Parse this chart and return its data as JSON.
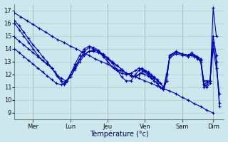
{
  "title": "Température (°c)",
  "x_labels": [
    "Mer",
    "Lun",
    "Jeu",
    "Ven",
    "Sam",
    "Dim"
  ],
  "ylim": [
    8.5,
    17.5
  ],
  "yticks": [
    9,
    10,
    11,
    12,
    13,
    14,
    15,
    16,
    17
  ],
  "background_color": "#cce8ec",
  "line_color": "#0000bb",
  "grid_color": "#aacccc",
  "series": [
    {
      "x": [
        0,
        8,
        16,
        24,
        32,
        40,
        48,
        56,
        64,
        72,
        80,
        88,
        96,
        104,
        112,
        120,
        128,
        136,
        144,
        152,
        160,
        168,
        176,
        184,
        192,
        200,
        208,
        216,
        224,
        232,
        240,
        248,
        256
      ],
      "y": [
        16.8,
        16.5,
        16.2,
        15.9,
        15.6,
        15.3,
        15.0,
        14.7,
        14.5,
        14.2,
        14.0,
        13.7,
        13.5,
        13.2,
        13.0,
        12.8,
        12.5,
        12.3,
        12.1,
        11.9,
        11.7,
        11.5,
        11.3,
        11.1,
        10.9,
        10.7,
        10.5,
        10.2,
        10.0,
        9.7,
        9.5,
        9.2,
        9.0
      ]
    },
    {
      "x": [
        0,
        6,
        12,
        18,
        24,
        30,
        36,
        42,
        48,
        52,
        56,
        60,
        64,
        68,
        72,
        78,
        84,
        90,
        96,
        102,
        108,
        114,
        120,
        126,
        132,
        138,
        144,
        150,
        156,
        160,
        164,
        168,
        172,
        176,
        180,
        184,
        188,
        192,
        196,
        200,
        208,
        216,
        224,
        228,
        232,
        236,
        240,
        244,
        248,
        252,
        256,
        260
      ],
      "y": [
        16.2,
        15.8,
        15.3,
        14.8,
        14.3,
        13.9,
        13.4,
        13.0,
        12.5,
        12.2,
        11.8,
        11.5,
        11.2,
        11.5,
        12.0,
        12.8,
        13.5,
        14.0,
        14.2,
        14.1,
        13.9,
        13.5,
        13.2,
        12.9,
        12.4,
        11.8,
        11.5,
        11.5,
        12.0,
        12.3,
        12.5,
        12.3,
        12.2,
        12.0,
        11.8,
        11.6,
        11.3,
        11.0,
        11.5,
        13.5,
        13.8,
        13.6,
        13.5,
        13.7,
        13.5,
        13.3,
        13.0,
        11.2,
        11.0,
        11.3,
        17.2,
        15.0
      ]
    },
    {
      "x": [
        0,
        6,
        12,
        18,
        24,
        30,
        36,
        42,
        48,
        54,
        60,
        66,
        72,
        78,
        84,
        90,
        96,
        102,
        108,
        114,
        120,
        126,
        132,
        138,
        144,
        150,
        156,
        160,
        164,
        168,
        172,
        176,
        180,
        184,
        188,
        192,
        196,
        200,
        208,
        216,
        224,
        228,
        232,
        236,
        240,
        244,
        248,
        252,
        256,
        260,
        264
      ],
      "y": [
        16.0,
        15.5,
        15.0,
        14.5,
        14.0,
        13.5,
        13.1,
        12.8,
        12.5,
        12.0,
        11.5,
        11.4,
        11.8,
        12.5,
        13.2,
        13.8,
        14.1,
        14.0,
        13.8,
        13.4,
        13.0,
        12.6,
        12.3,
        12.1,
        12.0,
        12.1,
        12.3,
        12.5,
        12.4,
        12.2,
        12.0,
        11.8,
        11.5,
        11.3,
        11.0,
        10.8,
        11.5,
        13.5,
        13.7,
        13.6,
        13.5,
        13.5,
        13.4,
        13.2,
        13.0,
        11.0,
        11.2,
        11.5,
        15.0,
        13.5,
        9.5
      ]
    },
    {
      "x": [
        0,
        6,
        12,
        18,
        24,
        30,
        36,
        42,
        48,
        54,
        60,
        66,
        72,
        78,
        84,
        90,
        96,
        102,
        108,
        114,
        120,
        126,
        132,
        138,
        144,
        150,
        156,
        160,
        164,
        168,
        172,
        176,
        180,
        184,
        188,
        192,
        196,
        200,
        208,
        216,
        224,
        228,
        232,
        236,
        240,
        244,
        248,
        252,
        256,
        260,
        264
      ],
      "y": [
        14.9,
        14.6,
        14.3,
        14.0,
        13.7,
        13.4,
        13.1,
        12.8,
        12.5,
        12.0,
        11.7,
        11.5,
        11.8,
        12.4,
        13.0,
        13.5,
        13.8,
        13.9,
        13.8,
        13.6,
        13.3,
        13.0,
        12.7,
        12.4,
        12.1,
        11.9,
        11.8,
        12.0,
        12.2,
        12.3,
        12.1,
        11.9,
        11.7,
        11.5,
        11.3,
        11.0,
        12.0,
        13.4,
        13.7,
        13.6,
        13.5,
        13.6,
        13.5,
        13.4,
        13.2,
        11.2,
        11.4,
        11.5,
        14.5,
        13.0,
        9.8
      ]
    },
    {
      "x": [
        0,
        6,
        12,
        18,
        24,
        30,
        36,
        42,
        48,
        54,
        60,
        66,
        72,
        78,
        84,
        90,
        96,
        102,
        108,
        114,
        120,
        126,
        132,
        138,
        144,
        150,
        156,
        160,
        164,
        168,
        172,
        176,
        180,
        184,
        188,
        192,
        196,
        200,
        208,
        216,
        224,
        228,
        232,
        236,
        240,
        244,
        248,
        252,
        256,
        260,
        264
      ],
      "y": [
        14.0,
        13.7,
        13.4,
        13.1,
        12.8,
        12.5,
        12.2,
        11.9,
        11.6,
        11.3,
        11.2,
        11.4,
        12.0,
        12.6,
        13.2,
        13.6,
        13.8,
        13.8,
        13.7,
        13.5,
        13.2,
        12.9,
        12.7,
        12.4,
        12.1,
        11.9,
        11.8,
        12.0,
        12.1,
        12.0,
        11.9,
        11.7,
        11.5,
        11.3,
        11.0,
        10.8,
        12.0,
        13.3,
        13.6,
        13.5,
        13.4,
        13.5,
        13.4,
        13.3,
        13.1,
        11.5,
        11.5,
        11.5,
        14.0,
        12.5,
        10.5
      ]
    }
  ],
  "x_tick_positions": [
    24,
    72,
    120,
    168,
    216,
    256
  ],
  "x_lim": [
    0,
    270
  ],
  "vline_positions": [
    24,
    72,
    120,
    168,
    216,
    256
  ]
}
